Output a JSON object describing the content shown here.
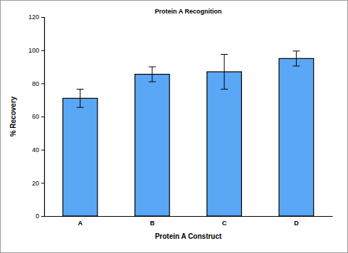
{
  "chart_data": {
    "type": "bar",
    "title": "Protein A Recognition",
    "x_label": "Protein A Construct",
    "y_label": "% Recovery",
    "categories": [
      "A",
      "B",
      "C",
      "D"
    ],
    "values": [
      71,
      85.5,
      87,
      95
    ],
    "errors": [
      5.5,
      4.5,
      10.5,
      4.5
    ],
    "color": "#5aa7f5",
    "ylim": [
      0,
      120
    ],
    "yticks": [
      0,
      20,
      40,
      60,
      80,
      100,
      120
    ],
    "grid": false
  }
}
